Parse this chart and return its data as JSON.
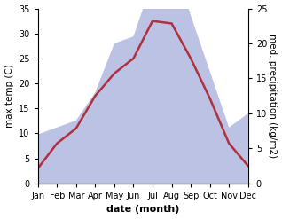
{
  "months": [
    "Jan",
    "Feb",
    "Mar",
    "Apr",
    "May",
    "Jun",
    "Jul",
    "Aug",
    "Sep",
    "Oct",
    "Nov",
    "Dec"
  ],
  "month_positions": [
    1,
    2,
    3,
    4,
    5,
    6,
    7,
    8,
    9,
    10,
    11,
    12
  ],
  "temperature": [
    3.0,
    8.0,
    11.0,
    17.5,
    22.0,
    25.0,
    32.5,
    32.0,
    25.0,
    17.0,
    8.0,
    3.5
  ],
  "precipitation_raw": [
    7,
    8,
    9,
    13,
    20,
    21,
    29,
    33,
    24,
    16,
    8,
    10
  ],
  "precip_scale_factor": 1.4,
  "temp_ylim": [
    0,
    35
  ],
  "precip_ylim": [
    0,
    25
  ],
  "temp_color": "#b03040",
  "precip_fill_color": "#b0b8e0",
  "bg_color": "#ffffff",
  "left_ylabel": "max temp (C)",
  "right_ylabel": "med. precipitation (kg/m2)",
  "xlabel": "date (month)",
  "temp_linewidth": 1.8,
  "xlabel_fontsize": 8,
  "ylabel_fontsize": 7.5,
  "tick_fontsize": 7
}
